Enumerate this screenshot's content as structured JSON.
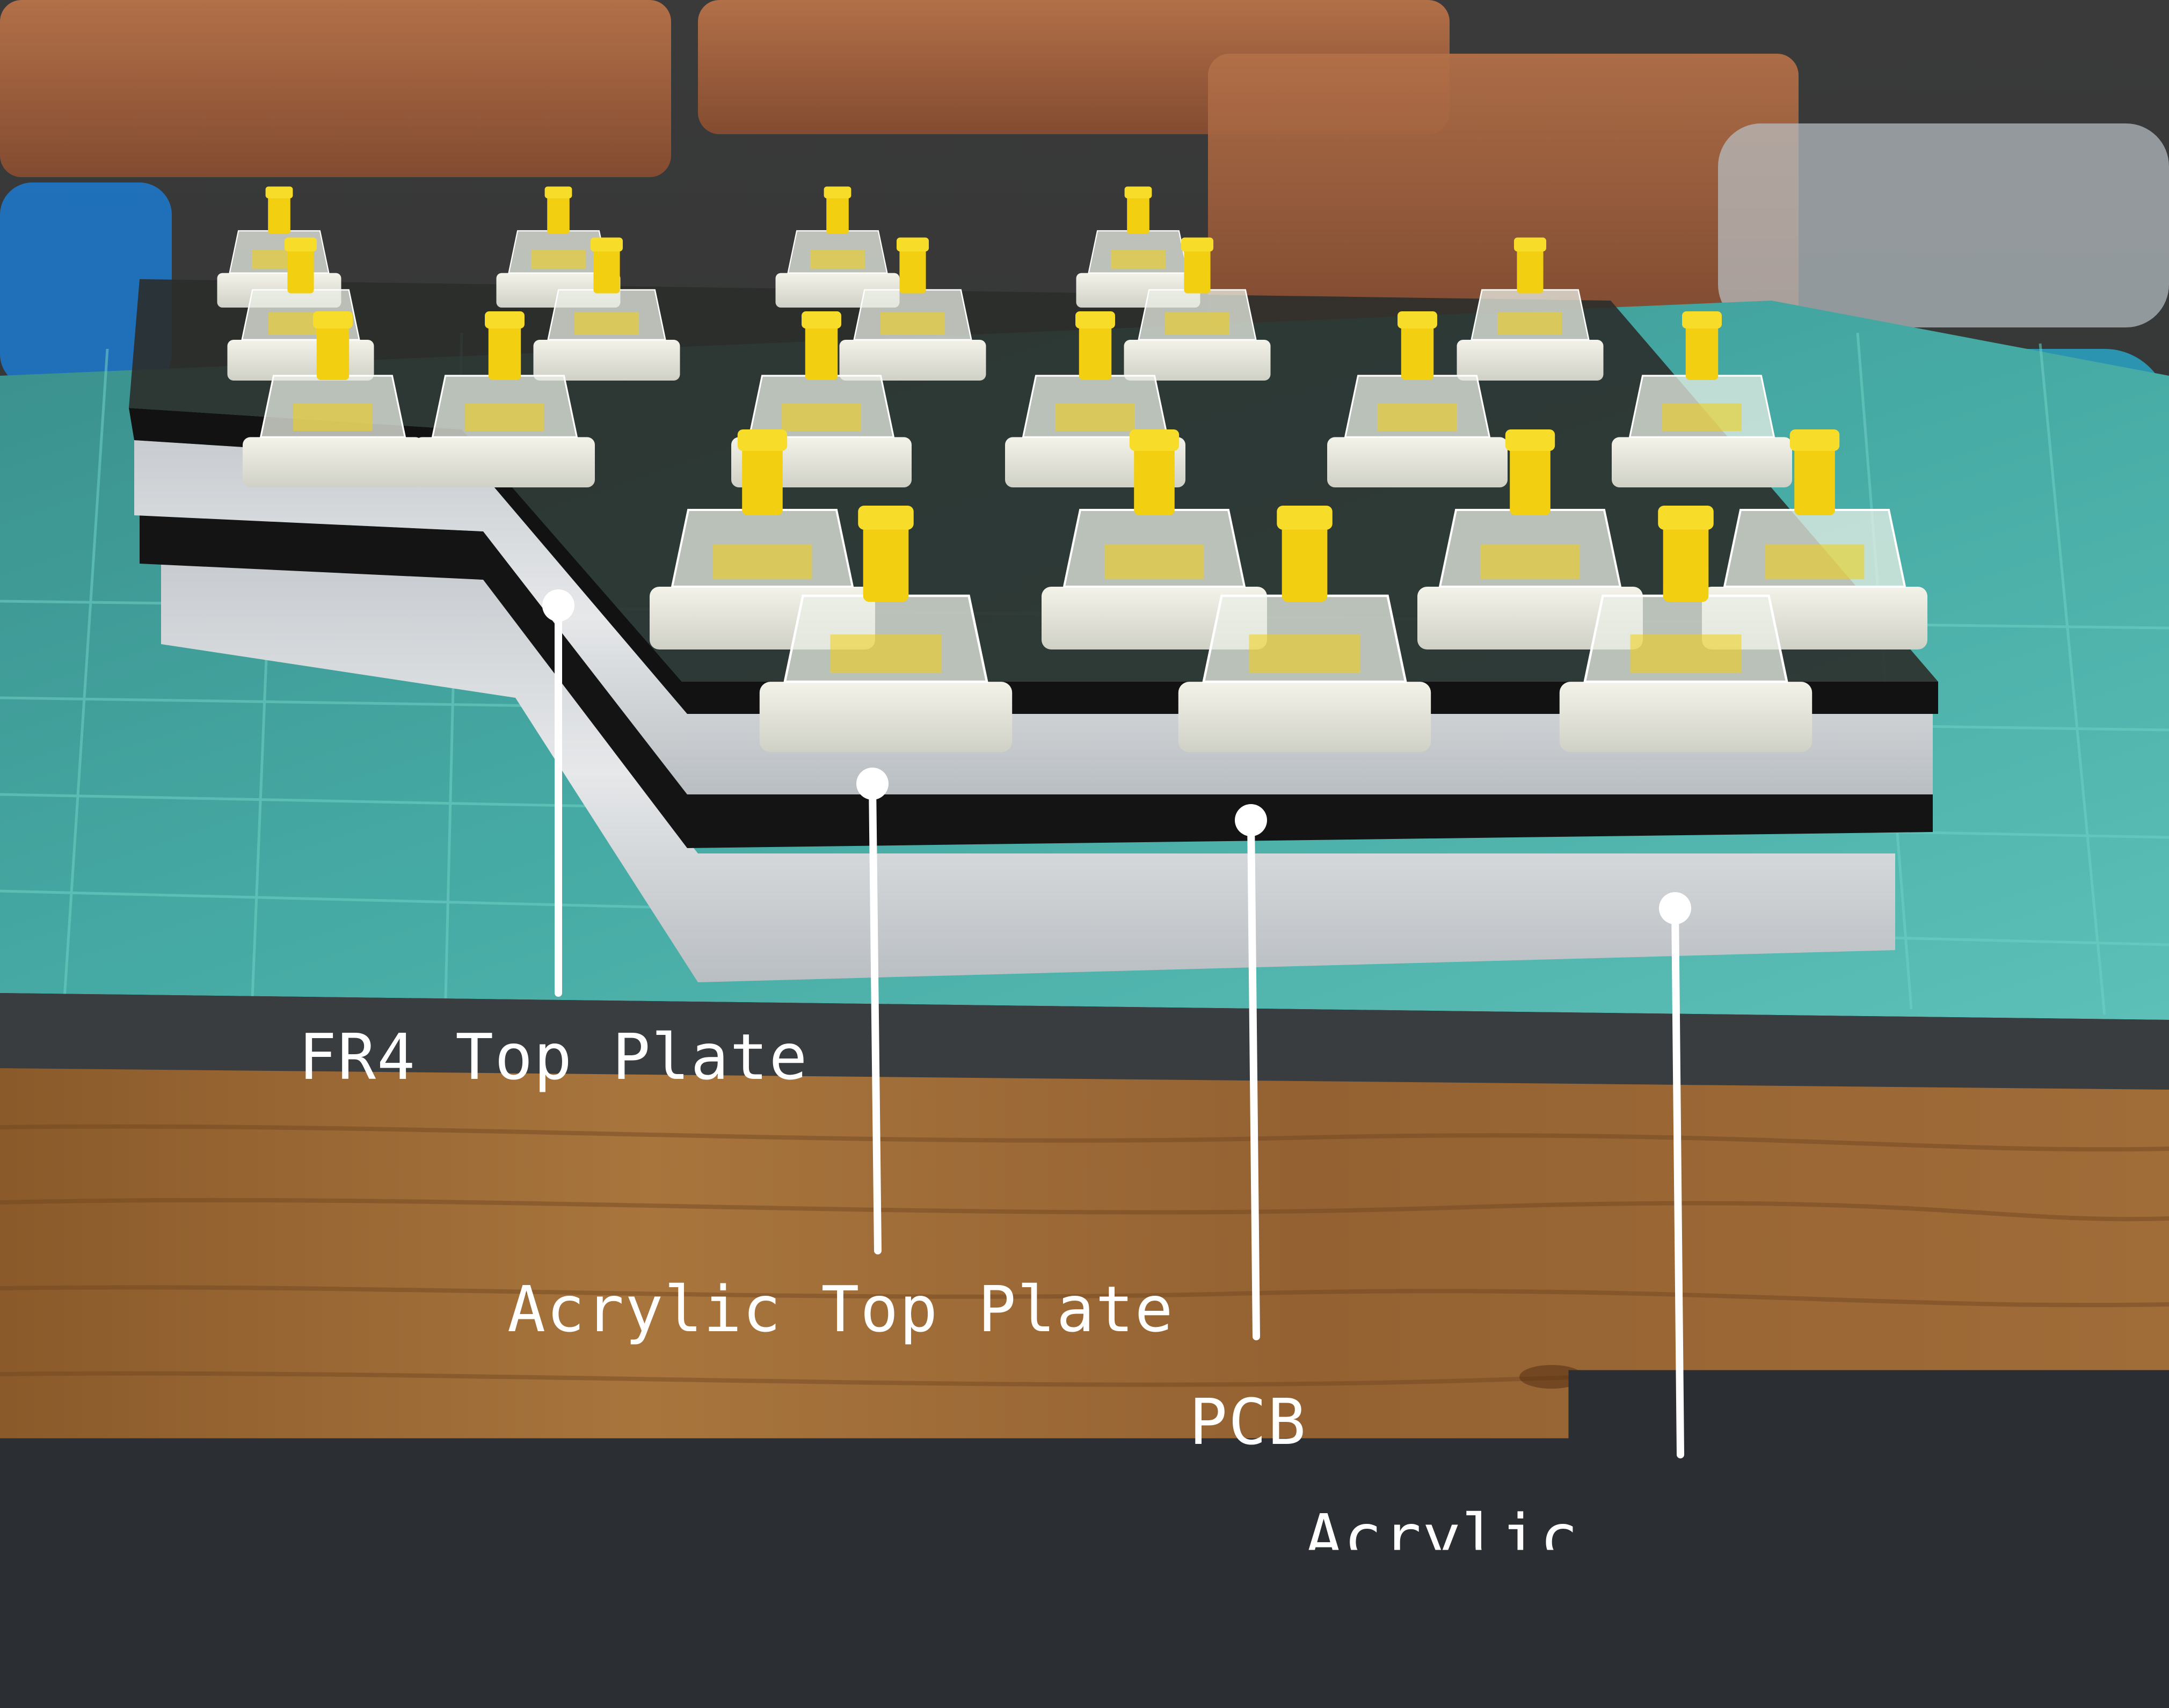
{
  "labels": {
    "fr4_top_plate": "FR4 Top Plate",
    "acrylic_top_plate": "Acrylic Top Plate",
    "pcb": "PCB",
    "acrylic_bottom_plate": "Acrylic Bottom Plate"
  },
  "colors": {
    "switch_stem": "#f2cf10",
    "wood": "#9a6a34",
    "cutting_mat": "#3f9f9a",
    "callout": "#ffffff"
  }
}
